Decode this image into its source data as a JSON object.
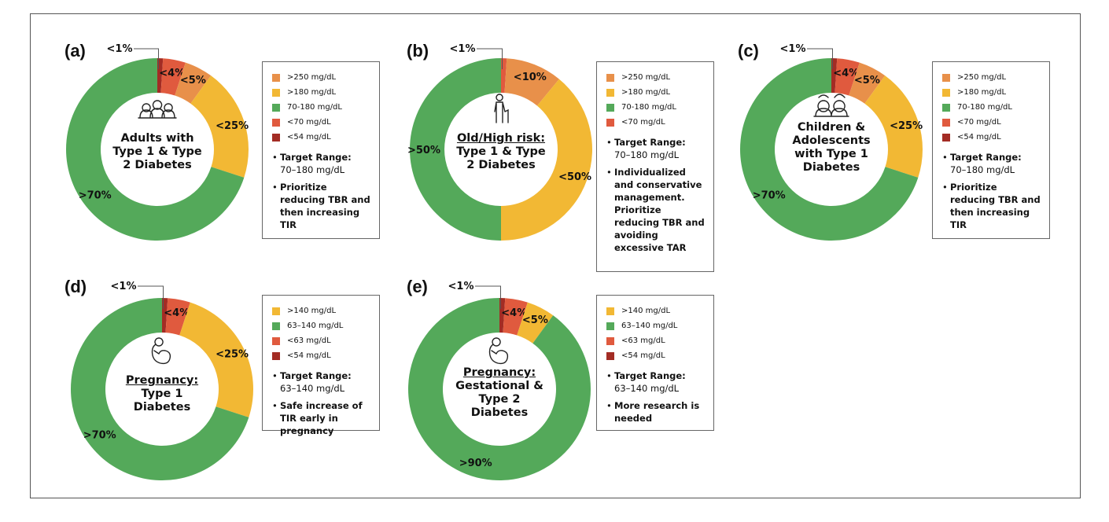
{
  "colors": {
    "very_high": "#E8904A",
    "high": "#F2B834",
    "in_range": "#54A95A",
    "low": "#E05A3E",
    "very_low": "#A32C24"
  },
  "chart_data": [
    {
      "type": "pie",
      "label": "(a)",
      "center_title": [
        "Adults with",
        "Type 1 & Type",
        "2 Diabetes"
      ],
      "icon": "group-people-icon",
      "slices": [
        {
          "label": "<1%",
          "value": 1,
          "color": "very_low"
        },
        {
          "label": "<4%",
          "value": 4,
          "color": "low"
        },
        {
          "label": "<5%",
          "value": 5,
          "color": "very_high"
        },
        {
          "label": "<25%",
          "value": 20,
          "color": "high"
        },
        {
          "label": ">70%",
          "value": 70,
          "color": "in_range"
        }
      ],
      "legend": [
        {
          "label": ">250 mg/dL",
          "color": "very_high"
        },
        {
          "label": ">180 mg/dL",
          "color": "high"
        },
        {
          "label": "70-180 mg/dL",
          "color": "in_range"
        },
        {
          "label": "<70 mg/dL",
          "color": "low"
        },
        {
          "label": "<54 mg/dL",
          "color": "very_low"
        }
      ],
      "notes": [
        {
          "bold": "Target Range:",
          "text": "70–180 mg/dL"
        },
        {
          "bold": "Prioritize reducing TBR and then increasing TIR",
          "text": ""
        }
      ]
    },
    {
      "type": "pie",
      "label": "(b)",
      "center_title": [
        "Old/High risk:",
        "Type 1 & Type",
        "2 Diabetes"
      ],
      "underline_first": true,
      "icon": "elderly-person-cane-icon",
      "slices": [
        {
          "label": "<1%",
          "value": 1,
          "color": "low"
        },
        {
          "label": "<10%",
          "value": 10,
          "color": "very_high"
        },
        {
          "label": "<50%",
          "value": 39,
          "color": "high"
        },
        {
          "label": ">50%",
          "value": 50,
          "color": "in_range"
        }
      ],
      "legend": [
        {
          "label": ">250 mg/dL",
          "color": "very_high"
        },
        {
          "label": ">180 mg/dL",
          "color": "high"
        },
        {
          "label": "70-180 mg/dL",
          "color": "in_range"
        },
        {
          "label": "<70 mg/dL",
          "color": "low"
        }
      ],
      "notes": [
        {
          "bold": "Target Range:",
          "text": "70–180 mg/dL"
        },
        {
          "bold": "Individualized and conservative management. Prioritize reducing TBR and avoiding excessive TAR",
          "text": ""
        }
      ]
    },
    {
      "type": "pie",
      "label": "(c)",
      "center_title": [
        "Children &",
        "Adolescents",
        "with Type 1",
        "Diabetes"
      ],
      "icon": "children-icon",
      "slices": [
        {
          "label": "<1%",
          "value": 1,
          "color": "very_low"
        },
        {
          "label": "<4%",
          "value": 4,
          "color": "low"
        },
        {
          "label": "<5%",
          "value": 5,
          "color": "very_high"
        },
        {
          "label": "<25%",
          "value": 20,
          "color": "high"
        },
        {
          "label": ">70%",
          "value": 70,
          "color": "in_range"
        }
      ],
      "legend": [
        {
          "label": ">250 mg/dL",
          "color": "very_high"
        },
        {
          "label": ">180 mg/dL",
          "color": "high"
        },
        {
          "label": "70-180 mg/dL",
          "color": "in_range"
        },
        {
          "label": "<70 mg/dL",
          "color": "low"
        },
        {
          "label": "<54 mg/dL",
          "color": "very_low"
        }
      ],
      "notes": [
        {
          "bold": "Target Range:",
          "text": "70–180 mg/dL"
        },
        {
          "bold": "Prioritize reducing TBR and then increasing TIR",
          "text": ""
        }
      ]
    },
    {
      "type": "pie",
      "label": "(d)",
      "center_title": [
        "Pregnancy:",
        "Type 1",
        "Diabetes"
      ],
      "underline_first": true,
      "icon": "pregnancy-icon",
      "slices": [
        {
          "label": "<1%",
          "value": 1,
          "color": "very_low"
        },
        {
          "label": "<4%",
          "value": 4,
          "color": "low"
        },
        {
          "label": "<25%",
          "value": 25,
          "color": "high"
        },
        {
          "label": ">70%",
          "value": 70,
          "color": "in_range"
        }
      ],
      "legend": [
        {
          "label": ">140 mg/dL",
          "color": "high"
        },
        {
          "label": "63–140 mg/dL",
          "color": "in_range"
        },
        {
          "label": "<63 mg/dL",
          "color": "low"
        },
        {
          "label": "<54 mg/dL",
          "color": "very_low"
        }
      ],
      "notes": [
        {
          "bold": "Target Range:",
          "text": "63–140 mg/dL"
        },
        {
          "bold": "Safe increase of TIR early in pregnancy",
          "text": ""
        }
      ]
    },
    {
      "type": "pie",
      "label": "(e)",
      "center_title": [
        "Pregnancy:",
        "Gestational &",
        "Type 2",
        "Diabetes"
      ],
      "underline_first": true,
      "icon": "pregnancy-icon",
      "slices": [
        {
          "label": "<1%",
          "value": 1,
          "color": "very_low"
        },
        {
          "label": "<4%",
          "value": 4,
          "color": "low"
        },
        {
          "label": "<5%",
          "value": 5,
          "color": "high"
        },
        {
          "label": ">90%",
          "value": 90,
          "color": "in_range"
        }
      ],
      "legend": [
        {
          "label": ">140 mg/dL",
          "color": "high"
        },
        {
          "label": "63–140 mg/dL",
          "color": "in_range"
        },
        {
          "label": "<63 mg/dL",
          "color": "low"
        },
        {
          "label": "<54 mg/dL",
          "color": "very_low"
        }
      ],
      "notes": [
        {
          "bold": "Target Range:",
          "text": "63–140 mg/dL"
        },
        {
          "bold": "More research is needed",
          "text": ""
        }
      ]
    }
  ]
}
